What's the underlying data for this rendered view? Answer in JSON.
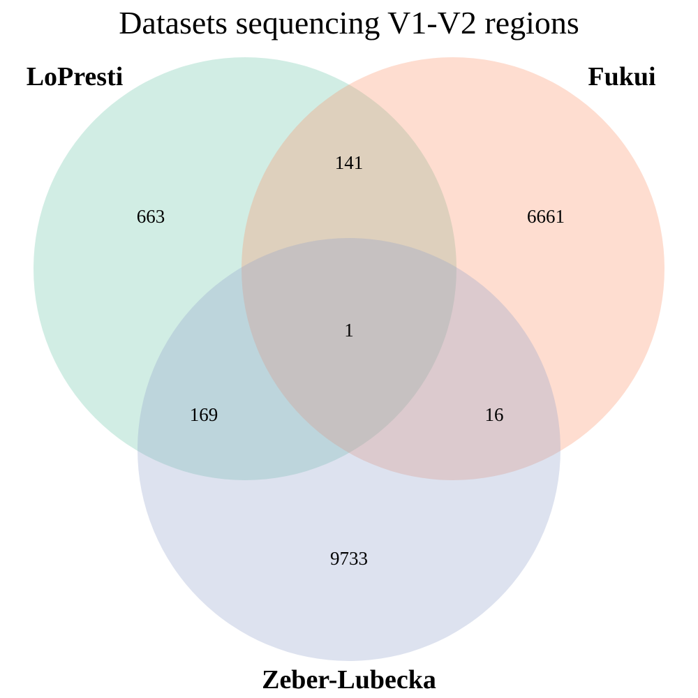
{
  "chart_data": {
    "type": "venn3",
    "title": "Datasets sequencing V1-V2 regions",
    "sets": [
      {
        "name": "LoPresti",
        "color": "#66c2a5"
      },
      {
        "name": "Fukui",
        "color": "#fc8d62"
      },
      {
        "name": "Zeber-Lubecka",
        "color": "#8da0cb"
      }
    ],
    "regions": {
      "lopresti_only": "663",
      "fukui_only": "6661",
      "zeber_lubecka_only": "9733",
      "lopresti_fukui": "141",
      "lopresti_zeber_lubecka": "169",
      "fukui_zeber_lubecka": "16",
      "all_three": "1"
    }
  }
}
